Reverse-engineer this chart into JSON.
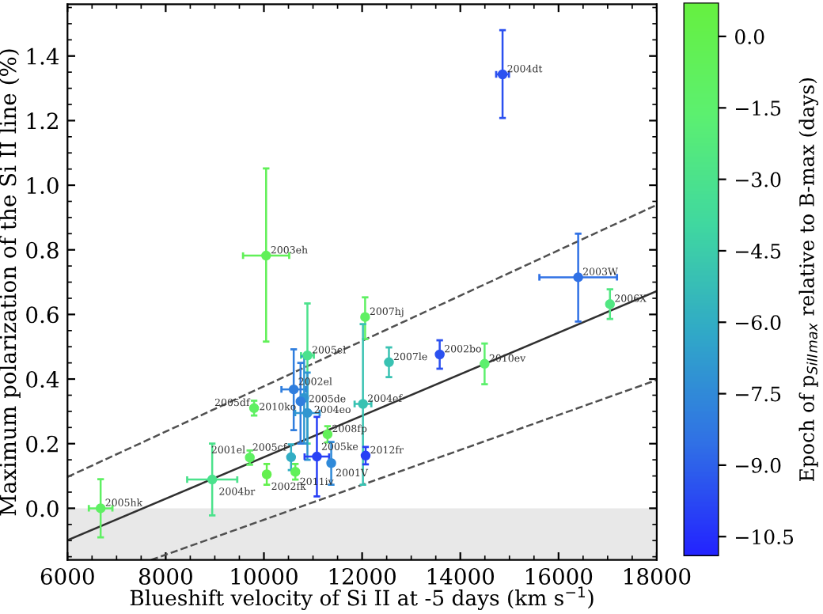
{
  "chart_data": {
    "type": "scatter",
    "xlabel": "Blueshift velocity of Si II at -5 days (km s$^{−1}$)",
    "ylabel": "Maximum polarization of the Si II line (%)",
    "clabel": "Epoch of p$_{SiII}$$_{max}$ relative to B-max (days)",
    "xlim": [
      6000,
      18000
    ],
    "xticks": [
      6000,
      8000,
      10000,
      12000,
      14000,
      16000,
      18000
    ],
    "ylim": [
      -0.16,
      1.56
    ],
    "yticks": [
      {
        "value": 0,
        "label": "0.0"
      },
      {
        "value": 0.2,
        "label": "0.2"
      },
      {
        "value": 0.4,
        "label": "0.4"
      },
      {
        "value": 0.6,
        "label": "0.6"
      },
      {
        "value": 0.8,
        "label": "0.8"
      },
      {
        "value": 1.0,
        "label": "1.0"
      },
      {
        "value": 1.2,
        "label": "1.2"
      },
      {
        "value": 1.4,
        "label": "1.4"
      }
    ],
    "clim": [
      -10.9,
      0.7
    ],
    "cticks": [
      {
        "value": 0,
        "label": "0.0"
      },
      {
        "value": -1.5,
        "label": "−1.5"
      },
      {
        "value": -3,
        "label": "−3.0"
      },
      {
        "value": -4.5,
        "label": "−4.5"
      },
      {
        "value": -6,
        "label": "−6.0"
      },
      {
        "value": -7.5,
        "label": "−7.5"
      },
      {
        "value": -9,
        "label": "−9.0"
      },
      {
        "value": -10.5,
        "label": "−10.5"
      }
    ],
    "grid": false,
    "bands": [
      {
        "axis": "y",
        "from": -0.16,
        "to": 0,
        "color": "#e8e8e8"
      }
    ],
    "series": [
      {
        "marker": "circle",
        "x": [
          14860,
          10045,
          16400,
          17047,
          12061,
          10886,
          12546,
          13580,
          14494,
          10607,
          10820,
          10746,
          10886,
          9800,
          12017,
          11296,
          10553,
          11079,
          11371,
          12071,
          10640,
          10058,
          9713,
          8947,
          6675
        ],
        "values": [
          1.343,
          0.782,
          0.715,
          0.632,
          0.592,
          0.473,
          0.452,
          0.476,
          0.447,
          0.368,
          0.342,
          0.331,
          0.295,
          0.31,
          0.323,
          0.229,
          0.158,
          0.16,
          0.14,
          0.163,
          0.113,
          0.105,
          0.157,
          0.089,
          0.0
        ],
        "errors": [
          [
            1.208,
            1.48
          ],
          [
            0.516,
            1.052
          ],
          [
            0.578,
            0.85
          ],
          0.046,
          [
            0.524,
            0.653
          ],
          [
            0.2,
            0.634
          ],
          0.046,
          0.044,
          0.063,
          [
            0.242,
            0.492
          ],
          [
            0.2,
            0.47
          ],
          [
            0.2,
            0.45
          ],
          [
            0.15,
            0.42
          ],
          0.023,
          [
            0.073,
            0.57
          ],
          0.025,
          0.04,
          [
            0.037,
            0.283
          ],
          [
            0.073,
            0.205
          ],
          0.027,
          0.024,
          0.032,
          0.022,
          0.111,
          0.09
        ],
        "xerrors": [
          130,
          470,
          790,
          null,
          null,
          130,
          null,
          null,
          null,
          250,
          null,
          null,
          250,
          null,
          170,
          null,
          null,
          250,
          null,
          null,
          null,
          null,
          null,
          510,
          240
        ],
        "colors": [
          "#2b51f0",
          "#61f059",
          "#3071e5",
          "#51e782",
          "#5ff063",
          "#4be28d",
          "#39c2b2",
          "#2b51f0",
          "#5df06e",
          "#307ede",
          "#3096d0",
          "#307ede",
          "#3096d0",
          "#5ff063",
          "#39c2b2",
          "#61f059",
          "#32adc4",
          "#2841f5",
          "#308ad9",
          "#2841f5",
          "#61f059",
          "#63f04e",
          "#5ff063",
          "#4be28d",
          "#5ff063"
        ],
        "cvalues": [
          -9.5,
          -0.5,
          -8.5,
          -2.5,
          -1,
          -3,
          -5,
          -9.5,
          -1.5,
          -8,
          -7,
          -8,
          -7,
          -1,
          -5,
          -0.5,
          -6,
          -10,
          -7.5,
          -10,
          -0.5,
          0,
          -1,
          -3,
          -1
        ]
      },
      {
        "type": "line",
        "x": [
          6000,
          18000
        ],
        "values": [
          -0.099,
          0.672
        ],
        "color": "#303030",
        "line_style": "solid",
        "marker": "none"
      },
      {
        "type": "line",
        "x": [
          6000,
          18000
        ],
        "values": [
          0.097,
          0.939
        ],
        "color": "#505050",
        "line_style": "dashed",
        "marker": "none"
      },
      {
        "type": "line",
        "x": [
          7700,
          18000
        ],
        "values": [
          -0.16,
          0.397
        ],
        "color": "#505050",
        "line_style": "dashed",
        "marker": "none"
      }
    ],
    "annotations": [
      {
        "text": "2004dt",
        "x": 14860,
        "y": 1.343
      },
      {
        "text": "2003eh",
        "x": 10045,
        "y": 0.782
      },
      {
        "text": "2003W",
        "x": 16400,
        "y": 0.715
      },
      {
        "text": "2006X",
        "x": 17047,
        "y": 0.632
      },
      {
        "text": "2007hj",
        "x": 12061,
        "y": 0.592
      },
      {
        "text": "2005el",
        "x": 10886,
        "y": 0.473
      },
      {
        "text": "2007le",
        "x": 12546,
        "y": 0.452
      },
      {
        "text": "2002bo",
        "x": 13580,
        "y": 0.476
      },
      {
        "text": "2010ev",
        "x": 14494,
        "y": 0.447
      },
      {
        "text": "2002el",
        "x": 10607,
        "y": 0.368
      },
      {
        "text": "2005de",
        "x": 10820,
        "y": 0.342
      },
      {
        "text": "2010ko",
        "x": 10746,
        "y": 0.331
      },
      {
        "text": "2004eo",
        "x": 10886,
        "y": 0.295
      },
      {
        "text": "2005df",
        "x": 9800,
        "y": 0.31
      },
      {
        "text": "2004ef",
        "x": 12017,
        "y": 0.323
      },
      {
        "text": "2008fp",
        "x": 11296,
        "y": 0.229
      },
      {
        "text": "2005cf",
        "x": 10553,
        "y": 0.158
      },
      {
        "text": "2005ke",
        "x": 11079,
        "y": 0.16
      },
      {
        "text": "2001V",
        "x": 11371,
        "y": 0.14
      },
      {
        "text": "2012fr",
        "x": 12071,
        "y": 0.163
      },
      {
        "text": "2011iv",
        "x": 10640,
        "y": 0.113
      },
      {
        "text": "2002fk",
        "x": 10058,
        "y": 0.105
      },
      {
        "text": "2001el",
        "x": 9713,
        "y": 0.157
      },
      {
        "text": "2004br",
        "x": 8947,
        "y": 0.089
      },
      {
        "text": "2005hk",
        "x": 6675,
        "y": 0.0
      }
    ]
  }
}
